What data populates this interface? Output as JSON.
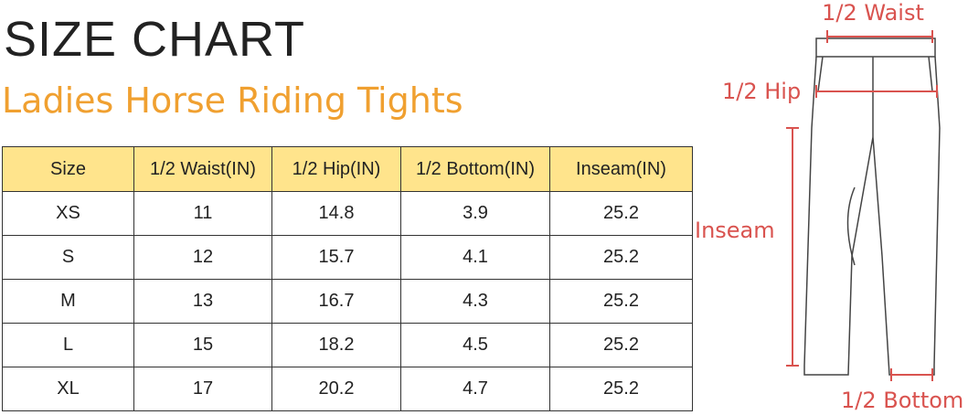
{
  "header": {
    "title": "SIZE CHART",
    "subtitle": "Ladies Horse Riding Tights"
  },
  "table": {
    "columns": [
      "Size",
      "1/2 Waist(IN)",
      "1/2 Hip(IN)",
      "1/2 Bottom(IN)",
      "Inseam(IN)"
    ],
    "rows": [
      [
        "XS",
        11,
        14.8,
        3.9,
        25.2
      ],
      [
        "S",
        12,
        15.7,
        4.1,
        25.2
      ],
      [
        "M",
        13,
        16.7,
        4.3,
        25.2
      ],
      [
        "L",
        15,
        18.2,
        4.5,
        25.2
      ],
      [
        "XL",
        17,
        20.2,
        4.7,
        25.2
      ]
    ]
  },
  "diagram": {
    "labels": {
      "waist": "1/2 Waist",
      "hip": "1/2 Hip",
      "inseam": "Inseam",
      "bottom": "1/2 Bottom"
    }
  }
}
